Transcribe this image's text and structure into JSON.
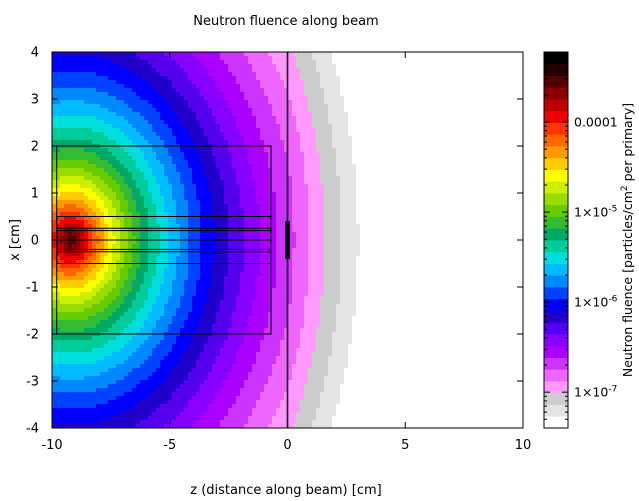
{
  "chart_data": {
    "type": "heatmap",
    "title": "Neutron fluence along beam",
    "xlabel": "z (distance along beam) [cm]",
    "ylabel": "x [cm]",
    "xlim": [
      -10,
      10
    ],
    "ylim": [
      -4,
      4
    ],
    "x_ticks": [
      "-10",
      "-5",
      "0",
      "5",
      "10"
    ],
    "x_tick_values": [
      -10,
      -5,
      0,
      5,
      10
    ],
    "y_ticks": [
      "-4",
      "-3",
      "-2",
      "-1",
      "0",
      "1",
      "2",
      "3",
      "4"
    ],
    "y_tick_values": [
      -4,
      -3,
      -2,
      -1,
      0,
      1,
      2,
      3,
      4
    ],
    "colorbar": {
      "scale": "log",
      "range": [
        4e-08,
        0.0006
      ],
      "label_prefix": "Neutron fluence [particles/cm",
      "label_sup": "2",
      "label_suffix": " per primary]",
      "tick_labels": [
        {
          "value": 0.0001,
          "text": "0.0001"
        },
        {
          "value": 1e-05,
          "mant": "1×10",
          "exp": "-5"
        },
        {
          "value": 1e-06,
          "mant": "1×10",
          "exp": "-6"
        },
        {
          "value": 1e-07,
          "mant": "1×10",
          "exp": "-7"
        }
      ],
      "palette": [
        "#ffffff",
        "#e4e4e4",
        "#cccccc",
        "#ff99ff",
        "#ee66ff",
        "#cc33ff",
        "#aa00ff",
        "#8800ff",
        "#5500ee",
        "#2200cc",
        "#0000ff",
        "#0044ff",
        "#0088ff",
        "#00bbff",
        "#00dddd",
        "#00cc99",
        "#00aa66",
        "#33bb33",
        "#66cc00",
        "#99dd00",
        "#ccee00",
        "#ffff00",
        "#ffcc00",
        "#ff9900",
        "#ff6600",
        "#ff3300",
        "#ee0000",
        "#bb0000",
        "#880000",
        "#550000",
        "#220000",
        "#000000"
      ]
    },
    "source": {
      "z": -9.2,
      "x": 0
    },
    "geometry": {
      "outer_box": {
        "z": [
          -9.8,
          -0.7
        ],
        "x": [
          -2,
          2
        ]
      },
      "slabs": [
        {
          "z": [
            -9.8,
            -0.7
          ],
          "x": [
            0.25,
            0.5
          ]
        },
        {
          "z": [
            -9.8,
            -0.7
          ],
          "x": [
            0,
            0.2
          ]
        },
        {
          "z": [
            -9.8,
            -0.7
          ],
          "x": [
            -0.2,
            0
          ]
        },
        {
          "z": [
            -9.8,
            -0.7
          ],
          "x": [
            -0.5,
            -0.25
          ]
        }
      ],
      "window": {
        "z": [
          -0.1,
          0.1
        ],
        "x": [
          -0.4,
          0.4
        ]
      },
      "divider_z": 0
    }
  }
}
